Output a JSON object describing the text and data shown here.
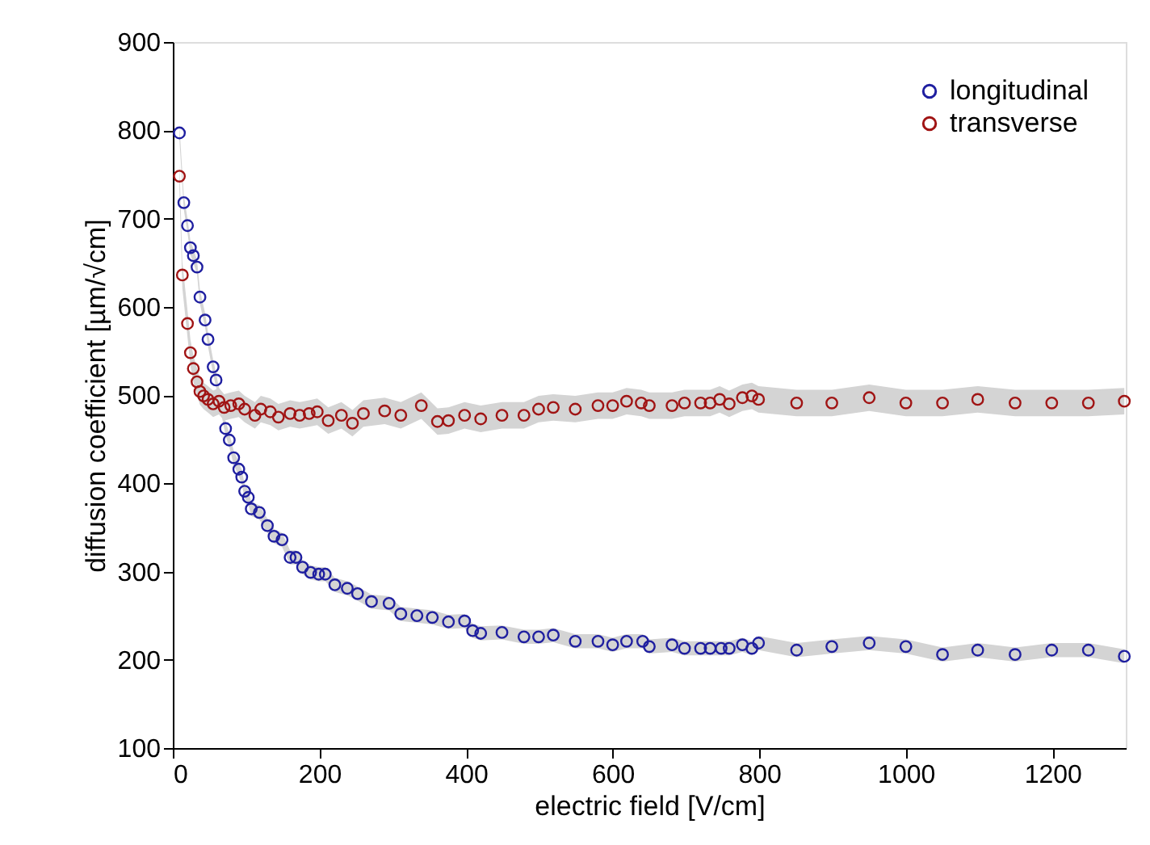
{
  "chart_data": {
    "type": "scatter",
    "xlabel": "electric field [V/cm]",
    "ylabel": "diffusion coefficient [µm/√cm]",
    "xlim": [
      0,
      1300
    ],
    "xticks": [
      0,
      200,
      400,
      600,
      800,
      1000,
      1200
    ],
    "ylim": [
      100,
      900
    ],
    "yticks": [
      100,
      200,
      300,
      400,
      500,
      600,
      700,
      800,
      900
    ],
    "grid": false,
    "legend": "top right",
    "marker": "circle",
    "series": [
      {
        "name": "longitudinal",
        "color": "#1f1fa0",
        "x": [
          9,
          15,
          20,
          24,
          28,
          33,
          37,
          44,
          48,
          55,
          59,
          72,
          77,
          83,
          90,
          94,
          98,
          103,
          107,
          118,
          129,
          138,
          149,
          160,
          168,
          177,
          188,
          199,
          208,
          221,
          238,
          252,
          271,
          295,
          311,
          333,
          354,
          376,
          398,
          409,
          420,
          449,
          479,
          499,
          519,
          549,
          580,
          600,
          619,
          641,
          650,
          681,
          698,
          720,
          733,
          748,
          759,
          777,
          790,
          799,
          851,
          899,
          950,
          1000,
          1050,
          1098,
          1149,
          1199,
          1249,
          1298
        ],
        "values": [
          797,
          718,
          692,
          667,
          658,
          645,
          611,
          585,
          563,
          532,
          517,
          462,
          449,
          429,
          416,
          407,
          391,
          384,
          371,
          367,
          352,
          340,
          336,
          316,
          316,
          305,
          299,
          297,
          297,
          285,
          281,
          275,
          266,
          264,
          252,
          250,
          248,
          243,
          244,
          233,
          230,
          231,
          226,
          226,
          228,
          221,
          221,
          217,
          221,
          221,
          215,
          217,
          213,
          213,
          213,
          213,
          213,
          217,
          213,
          219,
          211,
          215,
          219,
          215,
          206,
          211,
          206,
          211,
          211,
          204
        ],
        "lower": [
          789,
          710,
          684,
          659,
          650,
          637,
          603,
          577,
          555,
          524,
          509,
          454,
          441,
          421,
          408,
          399,
          383,
          376,
          363,
          359,
          344,
          332,
          328,
          308,
          308,
          297,
          291,
          289,
          289,
          277,
          273,
          267,
          258,
          256,
          244,
          242,
          240,
          235,
          236,
          225,
          222,
          223,
          218,
          218,
          220,
          213,
          213,
          209,
          213,
          213,
          207,
          209,
          205,
          205,
          205,
          205,
          205,
          209,
          205,
          211,
          203,
          207,
          211,
          207,
          198,
          203,
          198,
          203,
          203,
          196
        ],
        "upper": [
          805,
          726,
          700,
          675,
          666,
          653,
          619,
          593,
          571,
          540,
          525,
          470,
          457,
          437,
          424,
          415,
          399,
          392,
          379,
          375,
          360,
          348,
          344,
          324,
          324,
          313,
          307,
          305,
          305,
          293,
          289,
          283,
          274,
          272,
          260,
          258,
          256,
          251,
          252,
          241,
          238,
          239,
          234,
          234,
          236,
          229,
          229,
          225,
          229,
          229,
          223,
          225,
          221,
          221,
          221,
          221,
          221,
          225,
          221,
          227,
          219,
          223,
          227,
          223,
          214,
          219,
          214,
          219,
          219,
          212
        ]
      },
      {
        "name": "transverse",
        "color": "#a01414",
        "x": [
          9,
          13,
          20,
          24,
          28,
          33,
          37,
          42,
          48,
          55,
          63,
          70,
          79,
          90,
          98,
          112,
          120,
          133,
          144,
          160,
          173,
          186,
          197,
          212,
          230,
          245,
          260,
          289,
          311,
          339,
          361,
          376,
          398,
          420,
          449,
          479,
          499,
          519,
          549,
          580,
          600,
          619,
          639,
          650,
          681,
          698,
          720,
          733,
          746,
          759,
          777,
          790,
          799,
          851,
          899,
          950,
          1000,
          1050,
          1098,
          1149,
          1199,
          1249,
          1298
        ],
        "values": [
          748,
          636,
          581,
          548,
          530,
          515,
          504,
          499,
          495,
          490,
          493,
          486,
          488,
          490,
          484,
          477,
          484,
          481,
          475,
          479,
          477,
          479,
          481,
          471,
          477,
          468,
          479,
          482,
          477,
          488,
          470,
          471,
          477,
          473,
          477,
          477,
          484,
          486,
          484,
          488,
          488,
          493,
          491,
          488,
          488,
          491,
          491,
          491,
          495,
          490,
          497,
          499,
          495,
          491,
          491,
          497,
          491,
          491,
          495,
          491,
          491,
          491,
          493
        ],
        "lower": [
          733,
          621,
          566,
          533,
          515,
          500,
          489,
          484,
          480,
          475,
          478,
          471,
          473,
          475,
          469,
          462,
          469,
          466,
          460,
          464,
          462,
          464,
          466,
          456,
          462,
          453,
          464,
          467,
          462,
          473,
          455,
          456,
          462,
          458,
          462,
          462,
          469,
          471,
          469,
          473,
          473,
          478,
          476,
          473,
          473,
          476,
          476,
          476,
          480,
          475,
          482,
          484,
          480,
          476,
          476,
          482,
          476,
          476,
          480,
          476,
          476,
          476,
          478
        ],
        "upper": [
          763,
          651,
          596,
          563,
          545,
          530,
          519,
          514,
          510,
          505,
          508,
          501,
          503,
          505,
          499,
          492,
          499,
          496,
          490,
          494,
          492,
          494,
          496,
          486,
          492,
          483,
          494,
          497,
          492,
          503,
          485,
          486,
          492,
          488,
          492,
          492,
          499,
          501,
          499,
          503,
          503,
          508,
          506,
          503,
          503,
          506,
          506,
          506,
          510,
          505,
          512,
          514,
          510,
          506,
          506,
          512,
          506,
          506,
          510,
          506,
          506,
          506,
          508
        ]
      }
    ]
  }
}
